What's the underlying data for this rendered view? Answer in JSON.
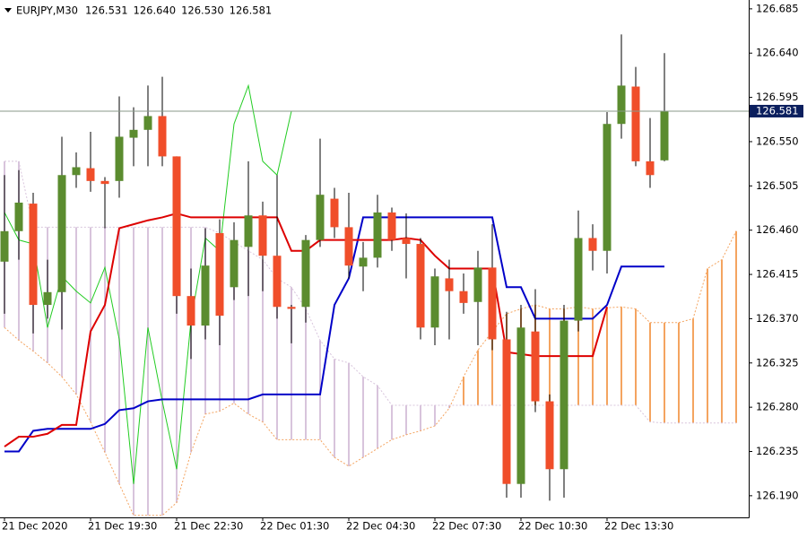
{
  "chart_data": {
    "type": "candlestick",
    "title": "EURJPY,M30",
    "last_bar_labels": [
      "126.531",
      "126.640",
      "126.530",
      "126.581"
    ],
    "categories": [
      "21 Dec 2020",
      null,
      null,
      null,
      null,
      null,
      "21 Dec 19:30",
      null,
      null,
      null,
      null,
      null,
      "21 Dec 22:30",
      null,
      null,
      null,
      null,
      null,
      "22 Dec 01:30",
      null,
      null,
      null,
      null,
      null,
      "22 Dec 04:30",
      null,
      null,
      null,
      null,
      null,
      "22 Dec 07:30",
      null,
      null,
      null,
      null,
      null,
      "22 Dec 10:30",
      null,
      null,
      null,
      null,
      null,
      "22 Dec 13:30",
      null,
      null,
      null,
      null,
      null,
      null,
      null,
      null,
      null
    ],
    "open": [
      126.428,
      126.459,
      126.487,
      126.384,
      126.397,
      126.516,
      126.523,
      126.51,
      126.51,
      126.554,
      126.562,
      126.576,
      126.535,
      126.393,
      126.363,
      126.457,
      126.402,
      126.443,
      126.475,
      126.434,
      126.382,
      126.382,
      126.45,
      126.492,
      126.463,
      126.423,
      126.432,
      126.478,
      126.452,
      126.446,
      126.361,
      126.411,
      126.398,
      126.387,
      126.422,
      126.349,
      126.202,
      126.357,
      126.286,
      126.217,
      126.368,
      126.452,
      126.439,
      126.568,
      126.606,
      126.53,
      126.531,
      null,
      null,
      null,
      null,
      null
    ],
    "high": [
      126.516,
      126.521,
      126.498,
      126.43,
      126.555,
      126.539,
      126.56,
      126.514,
      126.596,
      126.585,
      126.607,
      126.616,
      126.535,
      126.421,
      126.462,
      126.471,
      126.468,
      126.53,
      126.489,
      126.516,
      126.384,
      126.455,
      126.553,
      126.503,
      126.498,
      126.448,
      126.496,
      126.483,
      126.477,
      126.452,
      126.421,
      126.43,
      126.416,
      126.439,
      126.466,
      126.377,
      126.384,
      126.4,
      126.293,
      126.384,
      126.48,
      126.466,
      126.58,
      126.659,
      126.626,
      126.574,
      126.64,
      null,
      null,
      null,
      null,
      null
    ],
    "low": [
      126.375,
      126.43,
      126.355,
      126.37,
      126.359,
      126.503,
      126.499,
      126.462,
      126.493,
      126.525,
      126.525,
      126.525,
      126.375,
      126.329,
      126.349,
      126.343,
      126.389,
      126.393,
      126.398,
      126.37,
      126.345,
      126.366,
      126.443,
      126.452,
      126.411,
      126.398,
      126.422,
      126.439,
      126.411,
      126.349,
      126.343,
      126.349,
      126.375,
      126.343,
      126.338,
      126.188,
      126.188,
      126.275,
      126.185,
      126.188,
      126.357,
      126.419,
      126.416,
      126.553,
      126.525,
      126.503,
      126.53,
      null,
      null,
      null,
      null,
      null
    ],
    "close": [
      126.459,
      126.488,
      126.384,
      126.397,
      126.516,
      126.524,
      126.51,
      126.507,
      126.555,
      126.562,
      126.576,
      126.535,
      126.393,
      126.363,
      126.424,
      126.373,
      126.45,
      126.475,
      126.434,
      126.382,
      126.38,
      126.45,
      126.496,
      126.463,
      126.424,
      126.432,
      126.478,
      126.45,
      126.446,
      126.361,
      126.413,
      126.398,
      126.386,
      126.422,
      126.349,
      126.202,
      126.361,
      126.286,
      126.217,
      126.368,
      126.452,
      126.439,
      126.568,
      126.607,
      126.53,
      126.516,
      126.581,
      null,
      null,
      null,
      null,
      null
    ],
    "tenkan": [
      126.24,
      126.25,
      126.25,
      126.253,
      126.262,
      126.262,
      126.357,
      126.384,
      126.462,
      126.466,
      126.47,
      126.473,
      126.477,
      126.473,
      126.473,
      126.473,
      126.473,
      126.473,
      126.473,
      126.473,
      126.439,
      126.439,
      126.45,
      126.45,
      126.45,
      126.45,
      126.45,
      126.45,
      126.452,
      126.45,
      126.434,
      126.421,
      126.421,
      126.421,
      126.421,
      126.336,
      126.334,
      126.332,
      126.332,
      126.332,
      126.332,
      126.332,
      126.382,
      null,
      null,
      null,
      null,
      null,
      null,
      null,
      null,
      null
    ],
    "kijun": [
      126.235,
      126.235,
      126.256,
      126.258,
      126.258,
      126.258,
      126.258,
      126.263,
      126.277,
      126.279,
      126.286,
      126.288,
      126.288,
      126.288,
      126.288,
      126.288,
      126.288,
      126.288,
      126.293,
      126.293,
      126.293,
      126.293,
      126.293,
      126.384,
      126.411,
      126.473,
      126.473,
      126.473,
      126.473,
      126.473,
      126.473,
      126.473,
      126.473,
      126.473,
      126.473,
      126.402,
      126.402,
      126.37,
      126.37,
      126.37,
      126.37,
      126.37,
      126.384,
      126.423,
      126.423,
      126.423,
      126.423,
      null,
      null,
      null,
      null,
      null
    ],
    "chikou": [
      126.478,
      126.45,
      126.446,
      126.361,
      126.413,
      126.398,
      126.386,
      126.422,
      126.349,
      126.202,
      126.361,
      126.286,
      126.217,
      126.368,
      126.452,
      126.439,
      126.568,
      126.607,
      126.53,
      126.516,
      126.581,
      null,
      null,
      null,
      null,
      null,
      null,
      null,
      null,
      null,
      null,
      null,
      null,
      null,
      null,
      null,
      null,
      null,
      null,
      null,
      null,
      null,
      null,
      null,
      null,
      null,
      null,
      null,
      null,
      null,
      null,
      null
    ],
    "span_a": [
      126.361,
      126.348,
      126.337,
      126.325,
      126.311,
      126.293,
      126.265,
      126.234,
      126.202,
      126.17,
      126.17,
      126.17,
      126.183,
      126.234,
      126.273,
      126.276,
      126.284,
      126.273,
      126.265,
      126.247,
      126.247,
      126.247,
      126.247,
      126.229,
      126.22,
      126.229,
      126.238,
      126.247,
      126.252,
      126.256,
      126.261,
      126.279,
      126.311,
      126.338,
      126.357,
      126.375,
      126.38,
      126.384,
      126.38,
      126.38,
      126.382,
      126.38,
      126.381,
      126.382,
      126.38,
      126.366,
      126.366,
      126.366,
      126.37,
      126.421,
      126.43,
      126.459
    ],
    "span_b": [
      126.53,
      126.53,
      126.463,
      126.463,
      126.463,
      126.463,
      126.463,
      126.463,
      126.463,
      126.463,
      126.463,
      126.463,
      126.463,
      126.463,
      126.463,
      126.457,
      126.448,
      126.439,
      126.43,
      126.411,
      126.402,
      126.38,
      126.348,
      126.329,
      126.325,
      126.311,
      126.302,
      126.282,
      126.282,
      126.282,
      126.282,
      126.282,
      126.282,
      126.282,
      126.282,
      126.282,
      126.282,
      126.282,
      126.282,
      126.282,
      126.282,
      126.282,
      126.282,
      126.282,
      126.282,
      126.265,
      126.264,
      126.264,
      126.264,
      126.264,
      126.264,
      126.264
    ],
    "up_color": "#5b8c2f",
    "down_color": "#f04e2a",
    "tenkan_color": "#dd0000",
    "kijun_color": "#0000c8",
    "chikou_color": "#22cc22",
    "cloud_up_color": "#f4a460",
    "cloud_down_color": "#d8c4dc",
    "current_price": {
      "value": 126.581,
      "label": "126.581"
    },
    "ylim": [
      126.168,
      126.694
    ],
    "yticks": [
      126.685,
      {
        "value": 126.64,
        "label": "126.640"
      },
      126.595,
      {
        "value": 126.55,
        "label": "126.550"
      },
      126.505,
      {
        "value": 126.46,
        "label": "126.460"
      },
      126.415,
      {
        "value": 126.37,
        "label": "126.370"
      },
      126.325,
      {
        "value": 126.28,
        "label": "126.280"
      },
      126.235,
      {
        "value": 126.19,
        "label": "126.190"
      }
    ]
  }
}
